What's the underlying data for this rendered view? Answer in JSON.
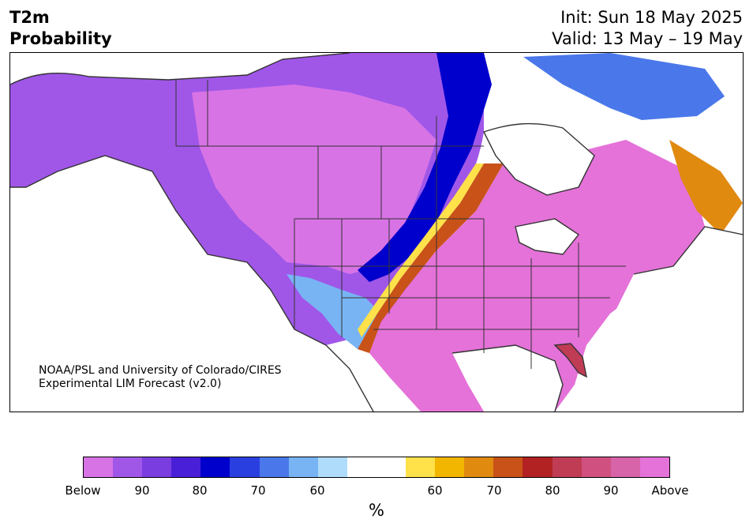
{
  "header": {
    "left_line1": "T2m",
    "left_line2": "Probability",
    "right_line1": "Init: Sun 18 May 2025",
    "right_line2": "Valid: 13 May – 19 May"
  },
  "credit": {
    "line1": "NOAA/PSL and University of Colorado/CIRES",
    "line2": "Experimental LIM Forecast (v2.0)"
  },
  "colorbar": {
    "unit": "%",
    "colors": [
      "#d873e6",
      "#a057e8",
      "#7a3de0",
      "#4a1fd8",
      "#0000cc",
      "#2a3fe0",
      "#4a78ea",
      "#78b4f4",
      "#b0dcfb",
      "#ffffff",
      "#ffffff",
      "#ffe14a",
      "#f2b600",
      "#e08a10",
      "#c85218",
      "#b22222",
      "#c03c55",
      "#d05080",
      "#d763a8",
      "#e472d8"
    ],
    "ticks": [
      "Below",
      "90",
      "80",
      "70",
      "60",
      "60",
      "70",
      "80",
      "90",
      "Above"
    ]
  },
  "map": {
    "legend_colors": {
      "land_border": "#333333",
      "no_data_white": "#ffffff",
      "above_core": "#e472d8",
      "below_core": "#a057e8"
    }
  }
}
